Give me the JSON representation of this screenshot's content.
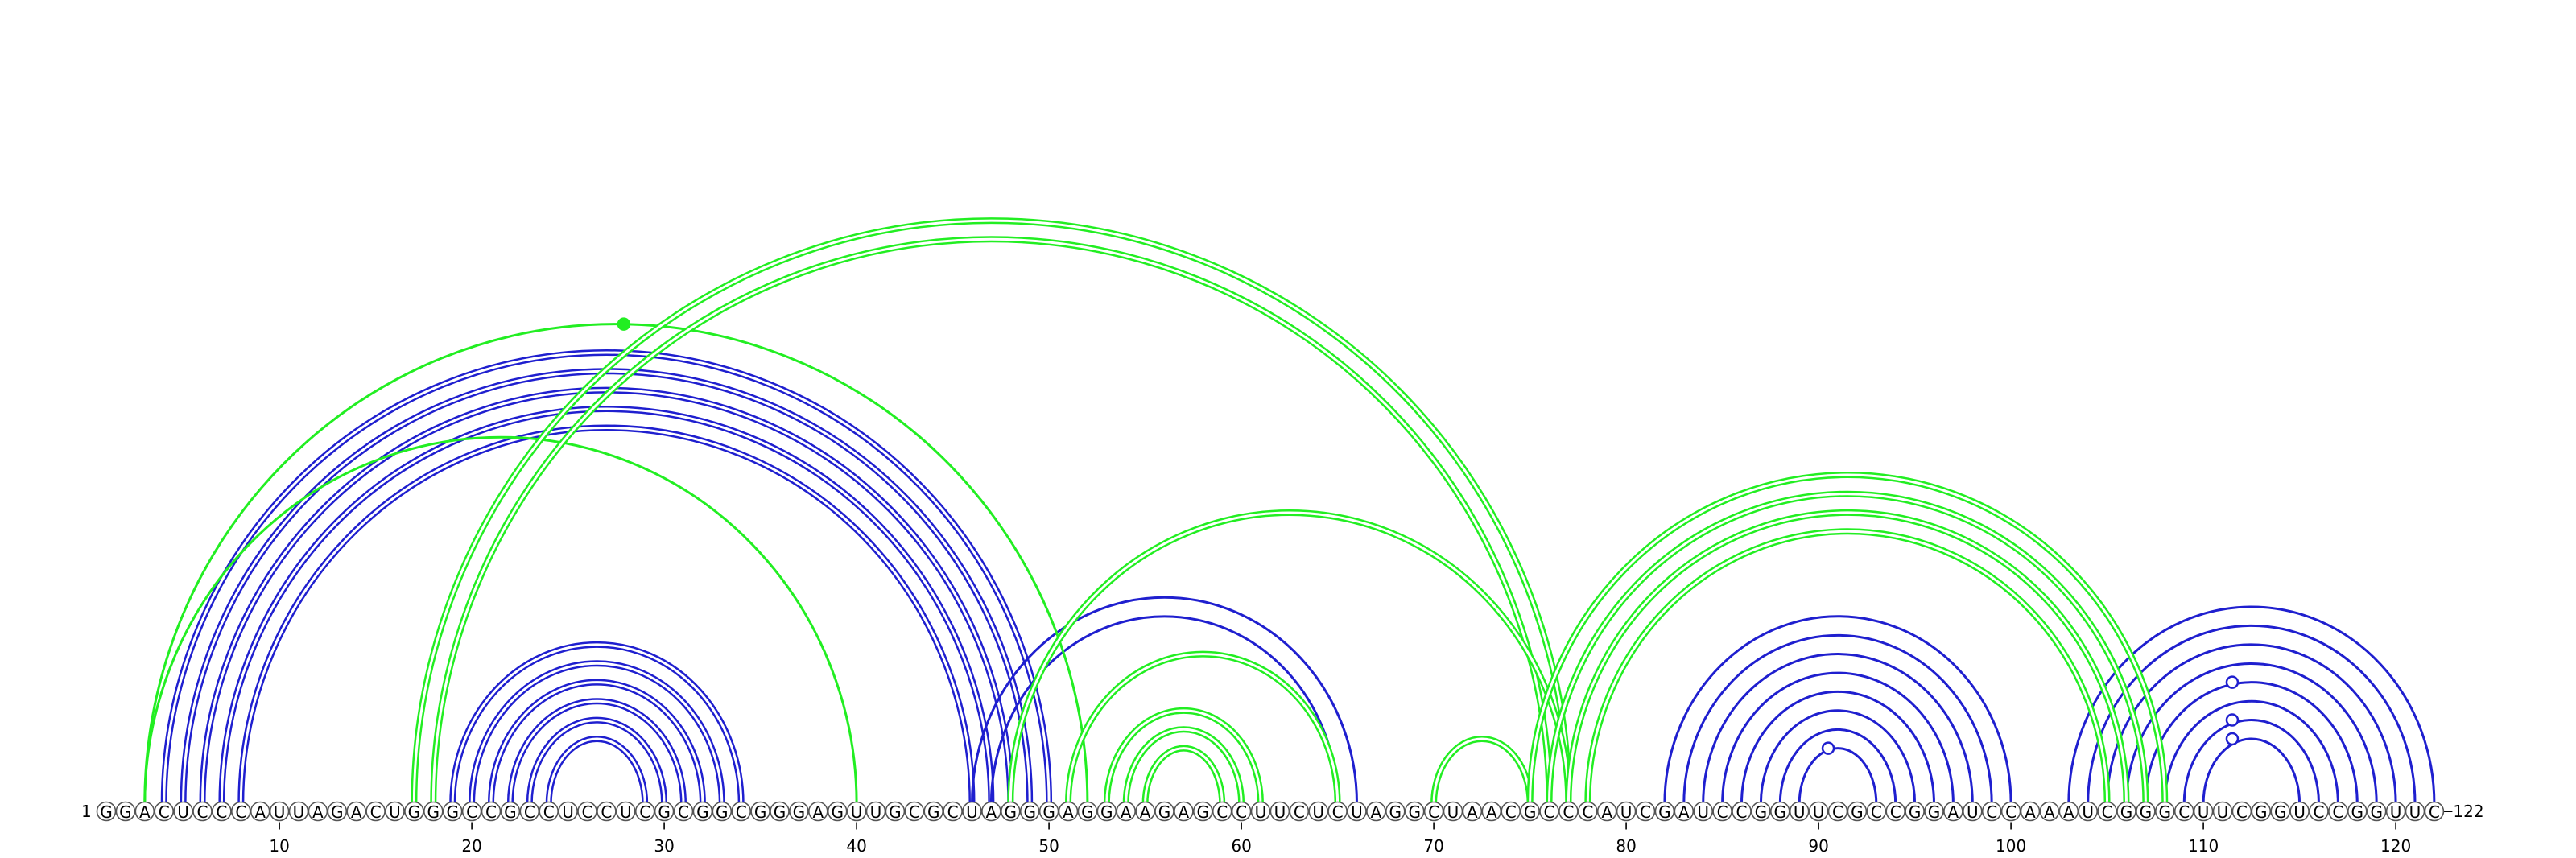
{
  "diagram": {
    "type": "rna-arc-diagram",
    "sequence": "GGACUCCCAUUAGACUGGGCCGCCUCCUCGCGGCGGGAGUUGCGCUAGGGAGGAAGAGCCUUCUCUAGGCUAACGCCCAUCGAUCCGGUUCGCCGGAUCCAAAUCGGGCUUCGGUCCGGUUC",
    "length": 122,
    "start_label": "1",
    "end_label": "122",
    "tick_labels": [
      "10",
      "20",
      "30",
      "40",
      "50",
      "60",
      "70",
      "80",
      "90",
      "100",
      "110",
      "120"
    ],
    "tick_positions": [
      10,
      20,
      30,
      40,
      50,
      60,
      70,
      80,
      90,
      100,
      110,
      120
    ],
    "colors": {
      "structure": "#1f1fcf",
      "alternate": "#22ee22",
      "nucleotide_border": "#555555"
    },
    "arc_groups": [
      {
        "color": "structure",
        "double": true,
        "pairs": [
          [
            4,
            50
          ],
          [
            5,
            49
          ],
          [
            6,
            48
          ],
          [
            7,
            47
          ],
          [
            8,
            46
          ]
        ]
      },
      {
        "color": "structure",
        "double": true,
        "pairs": [
          [
            19,
            34
          ],
          [
            20,
            33
          ],
          [
            21,
            32
          ],
          [
            22,
            31
          ],
          [
            23,
            30
          ],
          [
            24,
            29
          ]
        ]
      },
      {
        "color": "structure",
        "double": false,
        "pairs": [
          [
            46,
            66
          ],
          [
            47,
            65
          ]
        ]
      },
      {
        "color": "structure",
        "double": false,
        "pairs": [
          [
            82,
            100
          ],
          [
            83,
            99
          ],
          [
            84,
            98
          ],
          [
            85,
            97
          ],
          [
            86,
            96
          ],
          [
            87,
            95
          ],
          [
            88,
            94
          ],
          [
            89,
            93
          ]
        ]
      },
      {
        "color": "structure",
        "double": false,
        "pairs": [
          [
            103,
            122
          ],
          [
            104,
            121
          ],
          [
            105,
            120
          ],
          [
            106,
            119
          ],
          [
            107,
            118
          ],
          [
            108,
            117
          ],
          [
            109,
            116
          ],
          [
            110,
            115
          ]
        ]
      },
      {
        "color": "alternate",
        "double": false,
        "pairs": [
          [
            3,
            52
          ],
          [
            3,
            40
          ]
        ]
      },
      {
        "color": "alternate",
        "double": true,
        "pairs": [
          [
            17,
            77
          ],
          [
            18,
            76
          ]
        ]
      },
      {
        "color": "alternate",
        "double": true,
        "pairs": [
          [
            48,
            77
          ],
          [
            51,
            65
          ],
          [
            53,
            61
          ],
          [
            54,
            60
          ],
          [
            55,
            59
          ]
        ]
      },
      {
        "color": "alternate",
        "double": true,
        "pairs": [
          [
            70,
            75
          ]
        ]
      },
      {
        "color": "alternate",
        "double": true,
        "pairs": [
          [
            75,
            108
          ],
          [
            76,
            107
          ],
          [
            77,
            106
          ],
          [
            78,
            105
          ]
        ]
      }
    ],
    "markers": [
      {
        "pos": 27.9,
        "height_of_pair": [
          3,
          52
        ],
        "style": "filled",
        "color": "alternate"
      },
      {
        "pos": 90.5,
        "height_of_pair": [
          89,
          93
        ],
        "style": "open",
        "color": "structure"
      },
      {
        "pos": 111.5,
        "height_of_pair": [
          110,
          115
        ],
        "style": "open",
        "color": "structure"
      },
      {
        "pos": 111.5,
        "height_of_pair": [
          109,
          116
        ],
        "style": "open",
        "color": "structure"
      },
      {
        "pos": 111.5,
        "height_of_pair": [
          107,
          118
        ],
        "style": "open",
        "color": "structure"
      }
    ]
  }
}
